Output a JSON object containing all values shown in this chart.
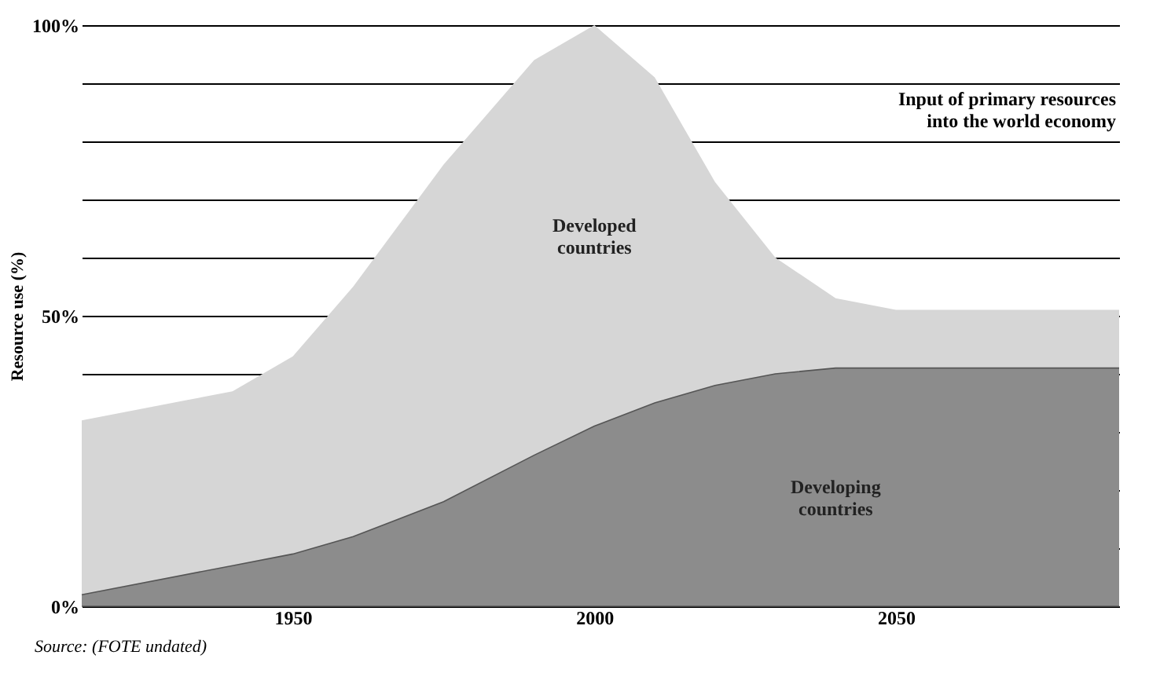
{
  "chart_data": {
    "type": "area",
    "stacked": true,
    "ylabel": "Resource use (%)",
    "x": [
      1915,
      1940,
      1950,
      1960,
      1975,
      1990,
      2000,
      2010,
      2020,
      2030,
      2040,
      2050,
      2087
    ],
    "series": [
      {
        "name": "Developing countries",
        "color": "#8c8c8c",
        "values": [
          2,
          7,
          9,
          12,
          18,
          26,
          31,
          35,
          38,
          40,
          41,
          41,
          41
        ]
      },
      {
        "name": "Developed countries",
        "color": "#d6d6d6",
        "values": [
          30,
          30,
          34,
          43,
          58,
          68,
          69,
          56,
          35,
          20,
          12,
          10,
          10
        ]
      }
    ],
    "xlim": [
      1915,
      2087
    ],
    "xticks": [
      1950,
      2000,
      2050
    ],
    "ylim": [
      0,
      100
    ],
    "yticks": [
      {
        "value": 0,
        "label": "0%"
      },
      {
        "value": 10,
        "label": null
      },
      {
        "value": 20,
        "label": null
      },
      {
        "value": 30,
        "label": null
      },
      {
        "value": 40,
        "label": null
      },
      {
        "value": 50,
        "label": "50%"
      },
      {
        "value": 60,
        "label": null
      },
      {
        "value": 70,
        "label": null
      },
      {
        "value": 80,
        "label": null
      },
      {
        "value": 90,
        "label": null
      },
      {
        "value": 100,
        "label": "100%"
      }
    ],
    "grid": "y",
    "legend": false,
    "annotations": [
      "Input of primary resources into the world economy",
      "Source: (FOTE undated)"
    ]
  }
}
